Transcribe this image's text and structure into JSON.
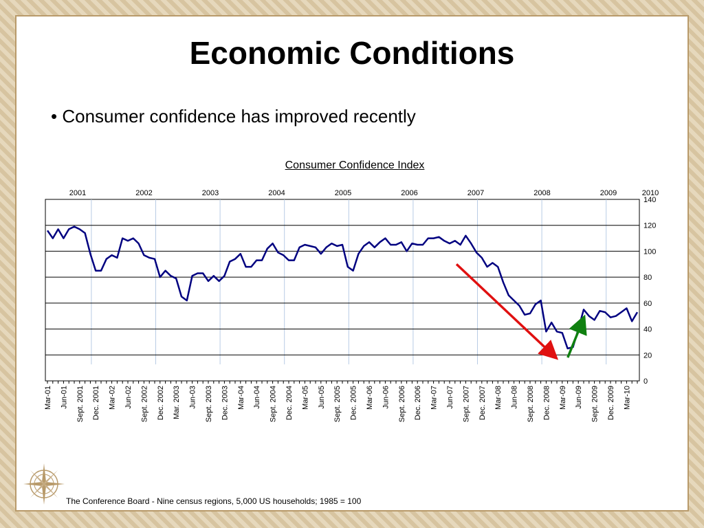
{
  "slide": {
    "title": "Economic Conditions",
    "bullet": "Consumer confidence has improved recently",
    "source_note": "The Conference Board - Nine census regions, 5,000 US households; 1985 = 100"
  },
  "colors": {
    "series_line": "#000080",
    "grid": "#000000",
    "decline_arrow": "#e01010",
    "recovery_arrow": "#108010",
    "year_divider": "#b8cce4"
  },
  "chart_data": {
    "type": "line",
    "title": "Consumer Confidence Index",
    "xlabel": "",
    "ylabel": "",
    "ylim": [
      0,
      140
    ],
    "yticks": [
      0,
      20,
      40,
      60,
      80,
      100,
      120,
      140
    ],
    "grid": true,
    "y_axis_side": "right",
    "years": [
      "2001",
      "2002",
      "2003",
      "2004",
      "2005",
      "2006",
      "2007",
      "2008",
      "2009",
      "2010"
    ],
    "x_tick_labels": [
      "Mar-01",
      "Jun-01",
      "Sept. 2001",
      "Dec. 2001",
      "Mar-02",
      "Jun-02",
      "Sept. 2002",
      "Dec. 2002",
      "Mar. 2003",
      "Jun-03",
      "Sept. 2003",
      "Dec. 2003",
      "Mar-04",
      "Jun-04",
      "Sept. 2004",
      "Dec. 2004",
      "Mar-05",
      "Jun-05",
      "Sept. 2005",
      "Dec. 2005",
      "Mar-06",
      "Jun-06",
      "Sept. 2006",
      "Dec. 2006",
      "Mar-07",
      "Jun-07",
      "Sept. 2007",
      "Dec. 2007",
      "Mar-08",
      "Jun-08",
      "Sept. 2008",
      "Dec. 2008",
      "Mar-09",
      "Jun-09",
      "Sept. 2009",
      "Dec. 2009",
      "Mar-10"
    ],
    "annotations": [
      {
        "type": "arrow",
        "meaning": "decline",
        "from": [
          "Jun-07",
          90
        ],
        "to": [
          "Dec. 2008",
          20
        ]
      },
      {
        "type": "arrow",
        "meaning": "recovery",
        "from": [
          "Mar-09",
          18
        ],
        "to": [
          "Jun-09",
          46
        ]
      }
    ],
    "series": [
      {
        "values": [
          116,
          110,
          117,
          110,
          117,
          119,
          117,
          114,
          98,
          85,
          85,
          94,
          97,
          95,
          110,
          108,
          110,
          106,
          97,
          95,
          94,
          80,
          85,
          81,
          79,
          65,
          62,
          81,
          83,
          83,
          77,
          81,
          77,
          81,
          92,
          94,
          98,
          88,
          88,
          93,
          93,
          102,
          106,
          99,
          97,
          93,
          93,
          103,
          105,
          104,
          103,
          98,
          103,
          106,
          104,
          105,
          88,
          85,
          98,
          104,
          107,
          103,
          107,
          110,
          105,
          105,
          107,
          100,
          106,
          105,
          105,
          110,
          110,
          111,
          108,
          106,
          108,
          105,
          112,
          106,
          99,
          95,
          88,
          91,
          88,
          76,
          66,
          62,
          58,
          51,
          52,
          59,
          62,
          38,
          45,
          38,
          37,
          25,
          26,
          40,
          55,
          50,
          47,
          54,
          53,
          49,
          50,
          53,
          56,
          46,
          53
        ]
      }
    ]
  }
}
